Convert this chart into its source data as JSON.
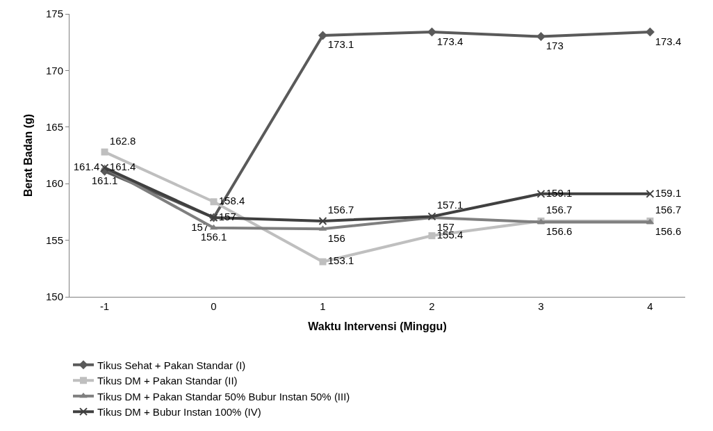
{
  "chart_data": {
    "type": "line",
    "xlabel": "Waktu Intervensi (Minggu)",
    "ylabel": "Berat Badan (g)",
    "categories": [
      "-1",
      "0",
      "1",
      "2",
      "3",
      "4"
    ],
    "series": [
      {
        "name": "Tikus Sehat + Pakan Standar (I)",
        "color": "#5a5a5a",
        "marker": "diamond",
        "values": [
          161.1,
          157,
          173.1,
          173.4,
          173,
          173.4
        ]
      },
      {
        "name": "Tikus DM + Pakan Standar (II)",
        "color": "#bfbfbf",
        "marker": "square",
        "values": [
          162.8,
          158.4,
          153.1,
          155.4,
          156.7,
          156.7
        ]
      },
      {
        "name": "Tikus DM + Pakan Standar 50% Bubur Instan 50% (III)",
        "color": "#7f7f7f",
        "marker": "triangle",
        "values": [
          161.4,
          156.1,
          156,
          157,
          156.6,
          156.6
        ]
      },
      {
        "name": "Tikus DM + Bubur Instan 100% (IV)",
        "color": "#404040",
        "marker": "cross",
        "values": [
          161.4,
          157,
          156.7,
          157.1,
          159.1,
          159.1
        ]
      }
    ],
    "ylim": [
      150,
      175
    ],
    "yticks": [
      150,
      155,
      160,
      165,
      170,
      175
    ],
    "legend": "bottom left",
    "data_labels": true
  }
}
